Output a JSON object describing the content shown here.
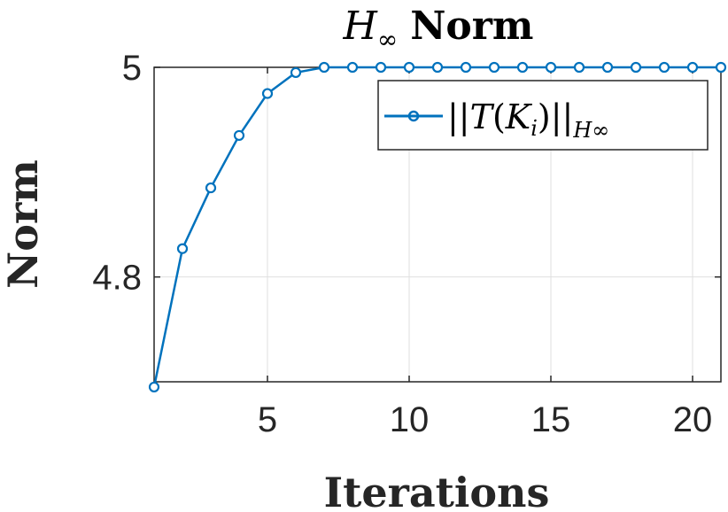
{
  "chart_data": {
    "type": "line",
    "title": {
      "symbol": "H",
      "subscript": "∞",
      "word": "Norm"
    },
    "xlabel": "Iterations",
    "ylabel": "Norm",
    "xlim": [
      1,
      21
    ],
    "ylim": [
      4.7,
      5.0
    ],
    "xticks": [
      5,
      10,
      15,
      20
    ],
    "yticks": [
      4.8,
      5
    ],
    "grid": true,
    "legend_position": "top-right",
    "series": [
      {
        "name": "||T(K_i)||_H∞",
        "name_parts": {
          "open": "||",
          "operator": "T",
          "lparen": "(",
          "var": "K",
          "var_sub": "i",
          "rparen": ")",
          "close": "||",
          "norm_sub": "H∞"
        },
        "color": "#0072BD",
        "marker": "circle",
        "x": [
          1,
          2,
          3,
          4,
          5,
          6,
          7,
          8,
          9,
          10,
          11,
          12,
          13,
          14,
          15,
          16,
          17,
          18,
          19,
          20,
          21
        ],
        "y": [
          4.695,
          4.827,
          4.885,
          4.935,
          4.975,
          4.995,
          5.0,
          5.0,
          5.0,
          5.0,
          5.0,
          5.0,
          5.0,
          5.0,
          5.0,
          5.0,
          5.0,
          5.0,
          5.0,
          5.0,
          5.0
        ]
      }
    ]
  }
}
